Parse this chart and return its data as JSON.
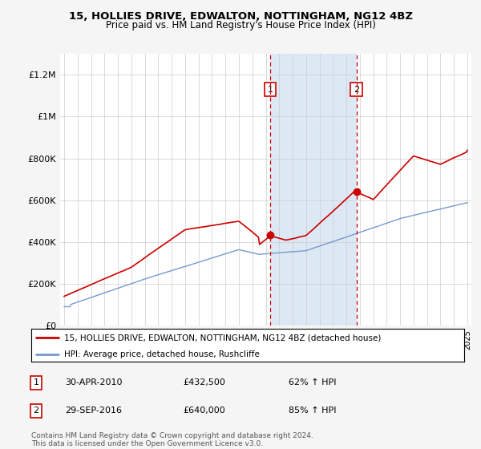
{
  "title": "15, HOLLIES DRIVE, EDWALTON, NOTTINGHAM, NG12 4BZ",
  "subtitle": "Price paid vs. HM Land Registry's House Price Index (HPI)",
  "background_color": "#f5f5f5",
  "plot_bg_color": "#ffffff",
  "highlight_bg_color": "#dce9f5",
  "red_line_color": "#cc0000",
  "blue_line_color": "#7799cc",
  "dashed_red_color": "#cc0000",
  "yticks": [
    0,
    200000,
    400000,
    600000,
    800000,
    1000000,
    1200000
  ],
  "ytick_labels": [
    "£0",
    "£200K",
    "£400K",
    "£600K",
    "£800K",
    "£1M",
    "£1.2M"
  ],
  "purchase1_year": 2010.33,
  "purchase1_price": 432500,
  "purchase1_label": "1",
  "purchase2_year": 2016.75,
  "purchase2_price": 640000,
  "purchase2_label": "2",
  "legend_red": "15, HOLLIES DRIVE, EDWALTON, NOTTINGHAM, NG12 4BZ (detached house)",
  "legend_blue": "HPI: Average price, detached house, Rushcliffe",
  "transaction1_date": "30-APR-2010",
  "transaction1_price": "£432,500",
  "transaction1_pct": "62% ↑ HPI",
  "transaction2_date": "29-SEP-2016",
  "transaction2_price": "£640,000",
  "transaction2_pct": "85% ↑ HPI",
  "footer": "Contains HM Land Registry data © Crown copyright and database right 2024.\nThis data is licensed under the Open Government Licence v3.0."
}
